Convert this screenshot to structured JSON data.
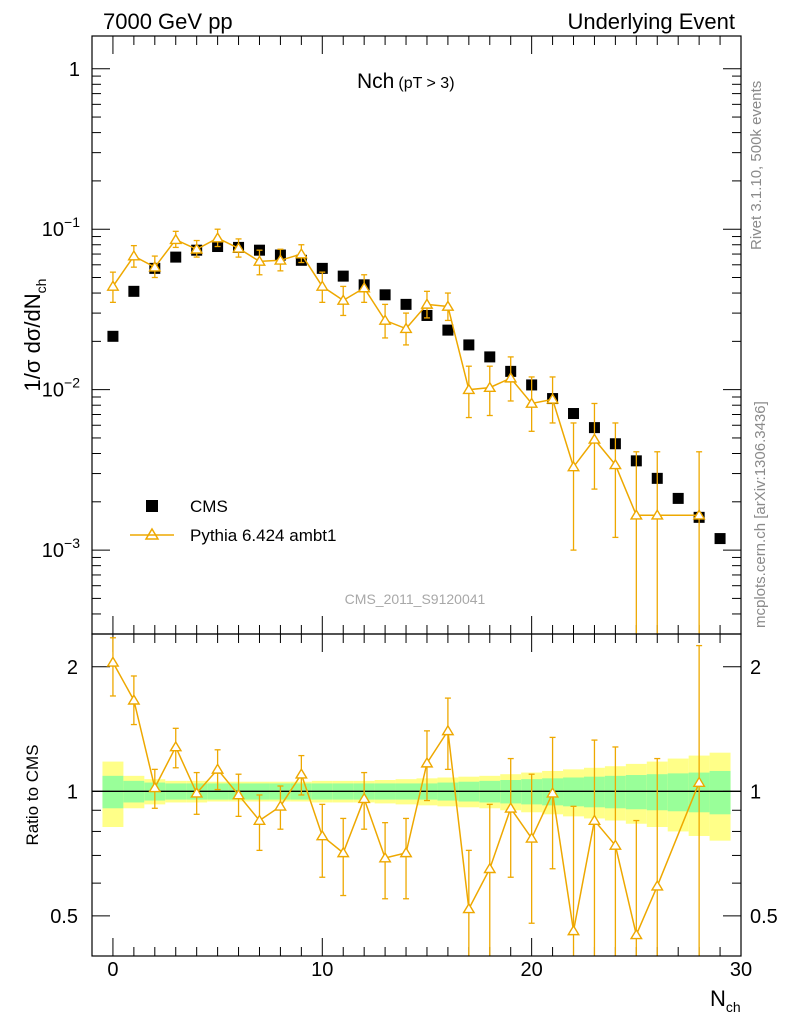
{
  "header": {
    "left": "7000 GeV pp",
    "right": "Underlying Event"
  },
  "side": {
    "rivet": "Rivet 3.1.10,  500k events",
    "mcplots": "mcplots.cern.ch [arXiv:1306.3436]"
  },
  "watermark": "CMS_2011_S9120041",
  "chart_data": [
    {
      "type": "scatter",
      "title_main": "Nch",
      "title_sub": "(pT >  3)",
      "ylabel_main": "1/σ dσ/dN",
      "ylabel_sub": "ch",
      "yscale": "log",
      "ylim": [
        0.0003,
        1.6
      ],
      "xlim": [
        -1,
        30
      ],
      "ytick_labels": [
        "1",
        "10",
        "10",
        "10"
      ],
      "ytick_exponents": [
        "",
        "−1",
        "−2",
        "−3"
      ],
      "legend": [
        {
          "label": "CMS",
          "marker": "square",
          "color": "#000000"
        },
        {
          "label": "Pythia 6.424 ambt1",
          "marker": "open-triangle",
          "color": "#eea800"
        }
      ],
      "series": [
        {
          "name": "CMS",
          "x": [
            0,
            1,
            2,
            3,
            4,
            5,
            6,
            7,
            8,
            9,
            10,
            11,
            12,
            13,
            14,
            15,
            16,
            17,
            18,
            19,
            20,
            21,
            22,
            23,
            24,
            25,
            26,
            27,
            28,
            29
          ],
          "y": [
            0.0215,
            0.041,
            0.057,
            0.067,
            0.074,
            0.078,
            0.077,
            0.074,
            0.069,
            0.064,
            0.057,
            0.051,
            0.045,
            0.039,
            0.034,
            0.029,
            0.0235,
            0.019,
            0.016,
            0.013,
            0.0107,
            0.0088,
            0.0071,
            0.0058,
            0.0046,
            0.0036,
            0.0028,
            0.0021,
            0.0016,
            0.00118
          ]
        },
        {
          "name": "Pythia 6.424 ambt1",
          "x": [
            0,
            1,
            2,
            3,
            4,
            5,
            6,
            7,
            8,
            9,
            10,
            11,
            12,
            13,
            14,
            15,
            16,
            17,
            18,
            19,
            20,
            21,
            22,
            23,
            24,
            25,
            26,
            28
          ],
          "y": [
            0.044,
            0.068,
            0.058,
            0.086,
            0.075,
            0.088,
            0.076,
            0.063,
            0.064,
            0.07,
            0.044,
            0.036,
            0.043,
            0.027,
            0.024,
            0.034,
            0.033,
            0.01,
            0.0103,
            0.0118,
            0.0082,
            0.0087,
            0.0033,
            0.0049,
            0.0034,
            0.00165,
            0.00165,
            0.00165
          ],
          "err_lo": [
            0.035,
            0.058,
            0.05,
            0.077,
            0.067,
            0.078,
            0.067,
            0.052,
            0.055,
            0.062,
            0.035,
            0.029,
            0.035,
            0.021,
            0.019,
            0.028,
            0.027,
            0.0067,
            0.0069,
            0.0085,
            0.0055,
            0.0062,
            0.001,
            0.0024,
            0.0012,
            0.0001,
            0.0001,
            0.0001
          ],
          "err_hi": [
            0.054,
            0.079,
            0.068,
            0.097,
            0.085,
            0.1,
            0.087,
            0.074,
            0.075,
            0.08,
            0.054,
            0.044,
            0.052,
            0.034,
            0.03,
            0.041,
            0.04,
            0.014,
            0.014,
            0.016,
            0.012,
            0.012,
            0.0062,
            0.0082,
            0.0062,
            0.0041,
            0.0041,
            0.0041
          ]
        }
      ]
    },
    {
      "type": "scatter",
      "ylabel": "Ratio to CMS",
      "xlabel_main": "N",
      "xlabel_sub": "ch",
      "yscale": "log",
      "ylim": [
        0.4,
        2.4
      ],
      "xlim": [
        -1,
        30
      ],
      "yticks": [
        0.5,
        1,
        2
      ],
      "ytick_labels": [
        "0.5",
        "1",
        "2"
      ],
      "xticks": [
        0,
        10,
        20,
        30
      ],
      "xtick_labels": [
        "0",
        "10",
        "20",
        "30"
      ],
      "band_colors": {
        "inner": "#99ff99",
        "outer": "#ffff88"
      },
      "bands": {
        "x": [
          0,
          1,
          2,
          3,
          4,
          5,
          6,
          7,
          8,
          9,
          10,
          11,
          12,
          13,
          14,
          15,
          16,
          17,
          18,
          19,
          20,
          21,
          22,
          23,
          24,
          25,
          26,
          27,
          28,
          29
        ],
        "inner_rel": [
          0.09,
          0.06,
          0.05,
          0.045,
          0.045,
          0.045,
          0.045,
          0.045,
          0.045,
          0.045,
          0.045,
          0.045,
          0.045,
          0.045,
          0.045,
          0.045,
          0.05,
          0.055,
          0.06,
          0.065,
          0.07,
          0.075,
          0.08,
          0.085,
          0.09,
          0.095,
          0.1,
          0.105,
          0.11,
          0.12
        ],
        "outer_rel": [
          0.18,
          0.09,
          0.07,
          0.06,
          0.06,
          0.055,
          0.055,
          0.055,
          0.055,
          0.055,
          0.06,
          0.06,
          0.06,
          0.065,
          0.07,
          0.075,
          0.08,
          0.085,
          0.09,
          0.1,
          0.11,
          0.12,
          0.13,
          0.14,
          0.15,
          0.165,
          0.18,
          0.2,
          0.22,
          0.24
        ]
      },
      "series": [
        {
          "name": "Pythia 6.424 ambt1",
          "x": [
            0,
            1,
            2,
            3,
            4,
            5,
            6,
            7,
            8,
            9,
            10,
            11,
            12,
            13,
            14,
            15,
            16,
            17,
            18,
            19,
            20,
            21,
            22,
            23,
            24,
            25,
            26,
            28
          ],
          "y": [
            2.05,
            1.66,
            1.02,
            1.28,
            0.99,
            1.13,
            0.98,
            0.85,
            0.92,
            1.1,
            0.78,
            0.71,
            0.96,
            0.69,
            0.71,
            1.17,
            1.4,
            0.52,
            0.65,
            0.91,
            0.77,
            0.99,
            0.46,
            0.85,
            0.74,
            0.45,
            0.59,
            1.05
          ],
          "err_lo": [
            1.7,
            1.45,
            0.91,
            1.14,
            0.88,
            1.01,
            0.87,
            0.72,
            0.81,
            0.98,
            0.62,
            0.56,
            0.81,
            0.55,
            0.55,
            0.95,
            1.13,
            0.32,
            0.38,
            0.62,
            0.48,
            0.65,
            0.1,
            0.38,
            0.2,
            0.02,
            0.02,
            0.02
          ],
          "err_hi": [
            2.35,
            1.9,
            1.13,
            1.42,
            1.11,
            1.26,
            1.1,
            0.98,
            1.03,
            1.22,
            0.93,
            0.86,
            1.11,
            0.84,
            0.86,
            1.4,
            1.68,
            0.72,
            0.93,
            1.2,
            1.1,
            1.35,
            0.92,
            1.33,
            1.28,
            0.85,
            1.2,
            2.25
          ]
        }
      ]
    }
  ]
}
